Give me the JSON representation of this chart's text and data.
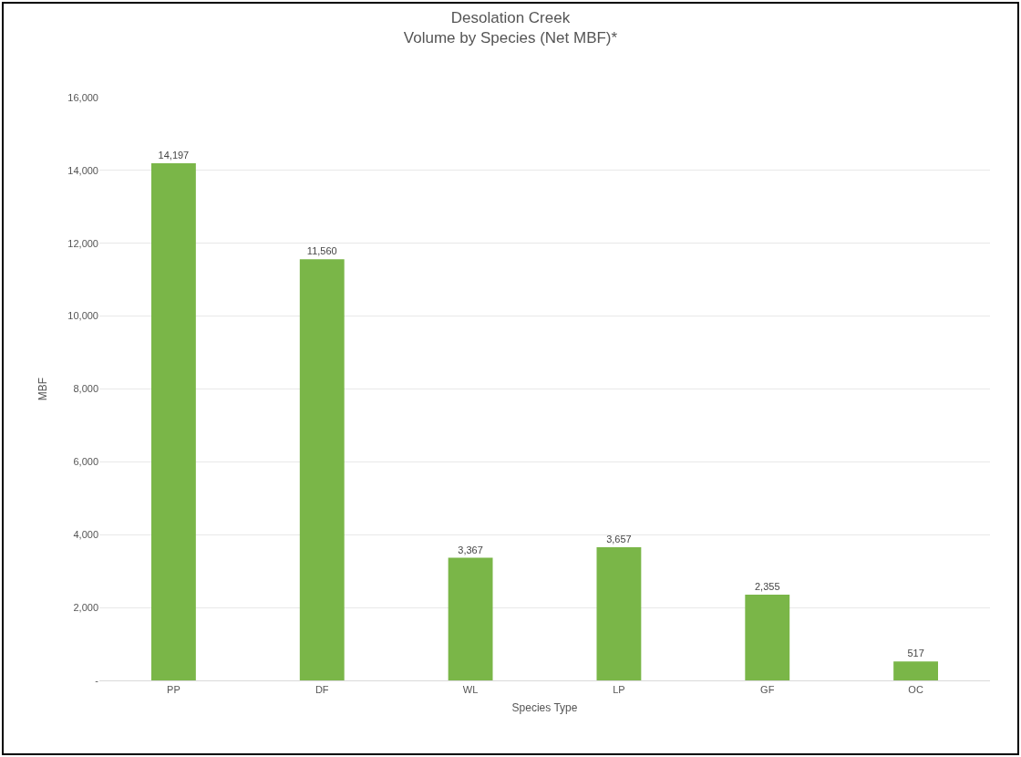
{
  "chart_data": {
    "type": "bar",
    "title": "Desolation Creek\nVolume by Species (Net MBF)*",
    "xlabel": "Species Type",
    "ylabel": "MBF",
    "categories": [
      "PP",
      "DF",
      "WL",
      "LP",
      "GF",
      "OC"
    ],
    "values": [
      14197,
      11560,
      3367,
      3657,
      2355,
      517
    ],
    "value_labels": [
      "14,197",
      "11,560",
      "3,367",
      "3,657",
      "2,355",
      "517"
    ],
    "color": "#7ab648",
    "ylim": [
      0,
      16000
    ],
    "yticks": [
      {
        "value": 0,
        "label": "-"
      },
      {
        "value": 2000,
        "label": "2,000"
      },
      {
        "value": 4000,
        "label": "4,000"
      },
      {
        "value": 6000,
        "label": "6,000"
      },
      {
        "value": 8000,
        "label": "8,000"
      },
      {
        "value": 10000,
        "label": "10,000"
      },
      {
        "value": 12000,
        "label": "12,000"
      },
      {
        "value": 14000,
        "label": "14,000"
      },
      {
        "value": 16000,
        "label": "16,000"
      }
    ],
    "grid": "y"
  }
}
